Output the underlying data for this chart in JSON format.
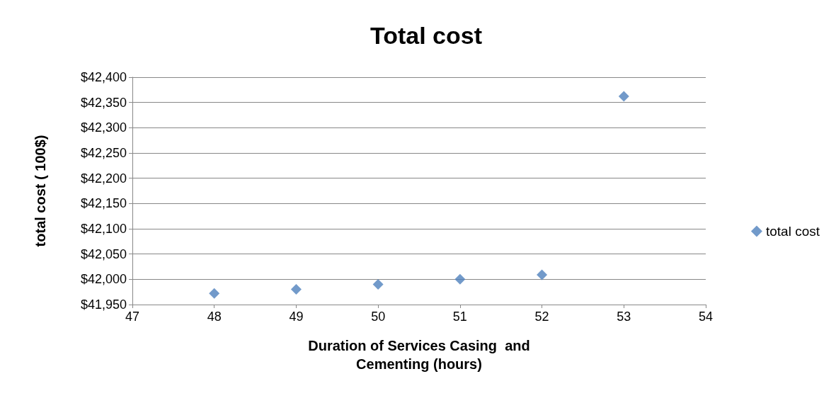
{
  "chart_data": {
    "type": "scatter",
    "title": "Total cost",
    "xlabel": "Duration of Services Casing  and\nCementing (hours)",
    "ylabel": "total cost ( 100$)",
    "x": [
      48,
      49,
      50,
      51,
      52,
      53
    ],
    "series": [
      {
        "name": "total cost",
        "color": "#4f81bd",
        "values": [
          41972,
          41980,
          41990,
          42000,
          42009,
          42362
        ]
      }
    ],
    "xlim": [
      47,
      54
    ],
    "xticks": [
      47,
      48,
      49,
      50,
      51,
      52,
      53,
      54
    ],
    "ylim": [
      41950,
      42400
    ],
    "yticks": [
      {
        "value": 41950,
        "label": "$41,950"
      },
      {
        "value": 42000,
        "label": "$42,000"
      },
      {
        "value": 42050,
        "label": "$42,050"
      },
      {
        "value": 42100,
        "label": "$42,100"
      },
      {
        "value": 42150,
        "label": "$42,150"
      },
      {
        "value": 42200,
        "label": "$42,200"
      },
      {
        "value": 42250,
        "label": "$42,250"
      },
      {
        "value": 42300,
        "label": "$42,300"
      },
      {
        "value": 42350,
        "label": "$42,350"
      },
      {
        "value": 42400,
        "label": "$42,400"
      }
    ],
    "grid": "y",
    "legend": "right",
    "marker": "diamond"
  }
}
